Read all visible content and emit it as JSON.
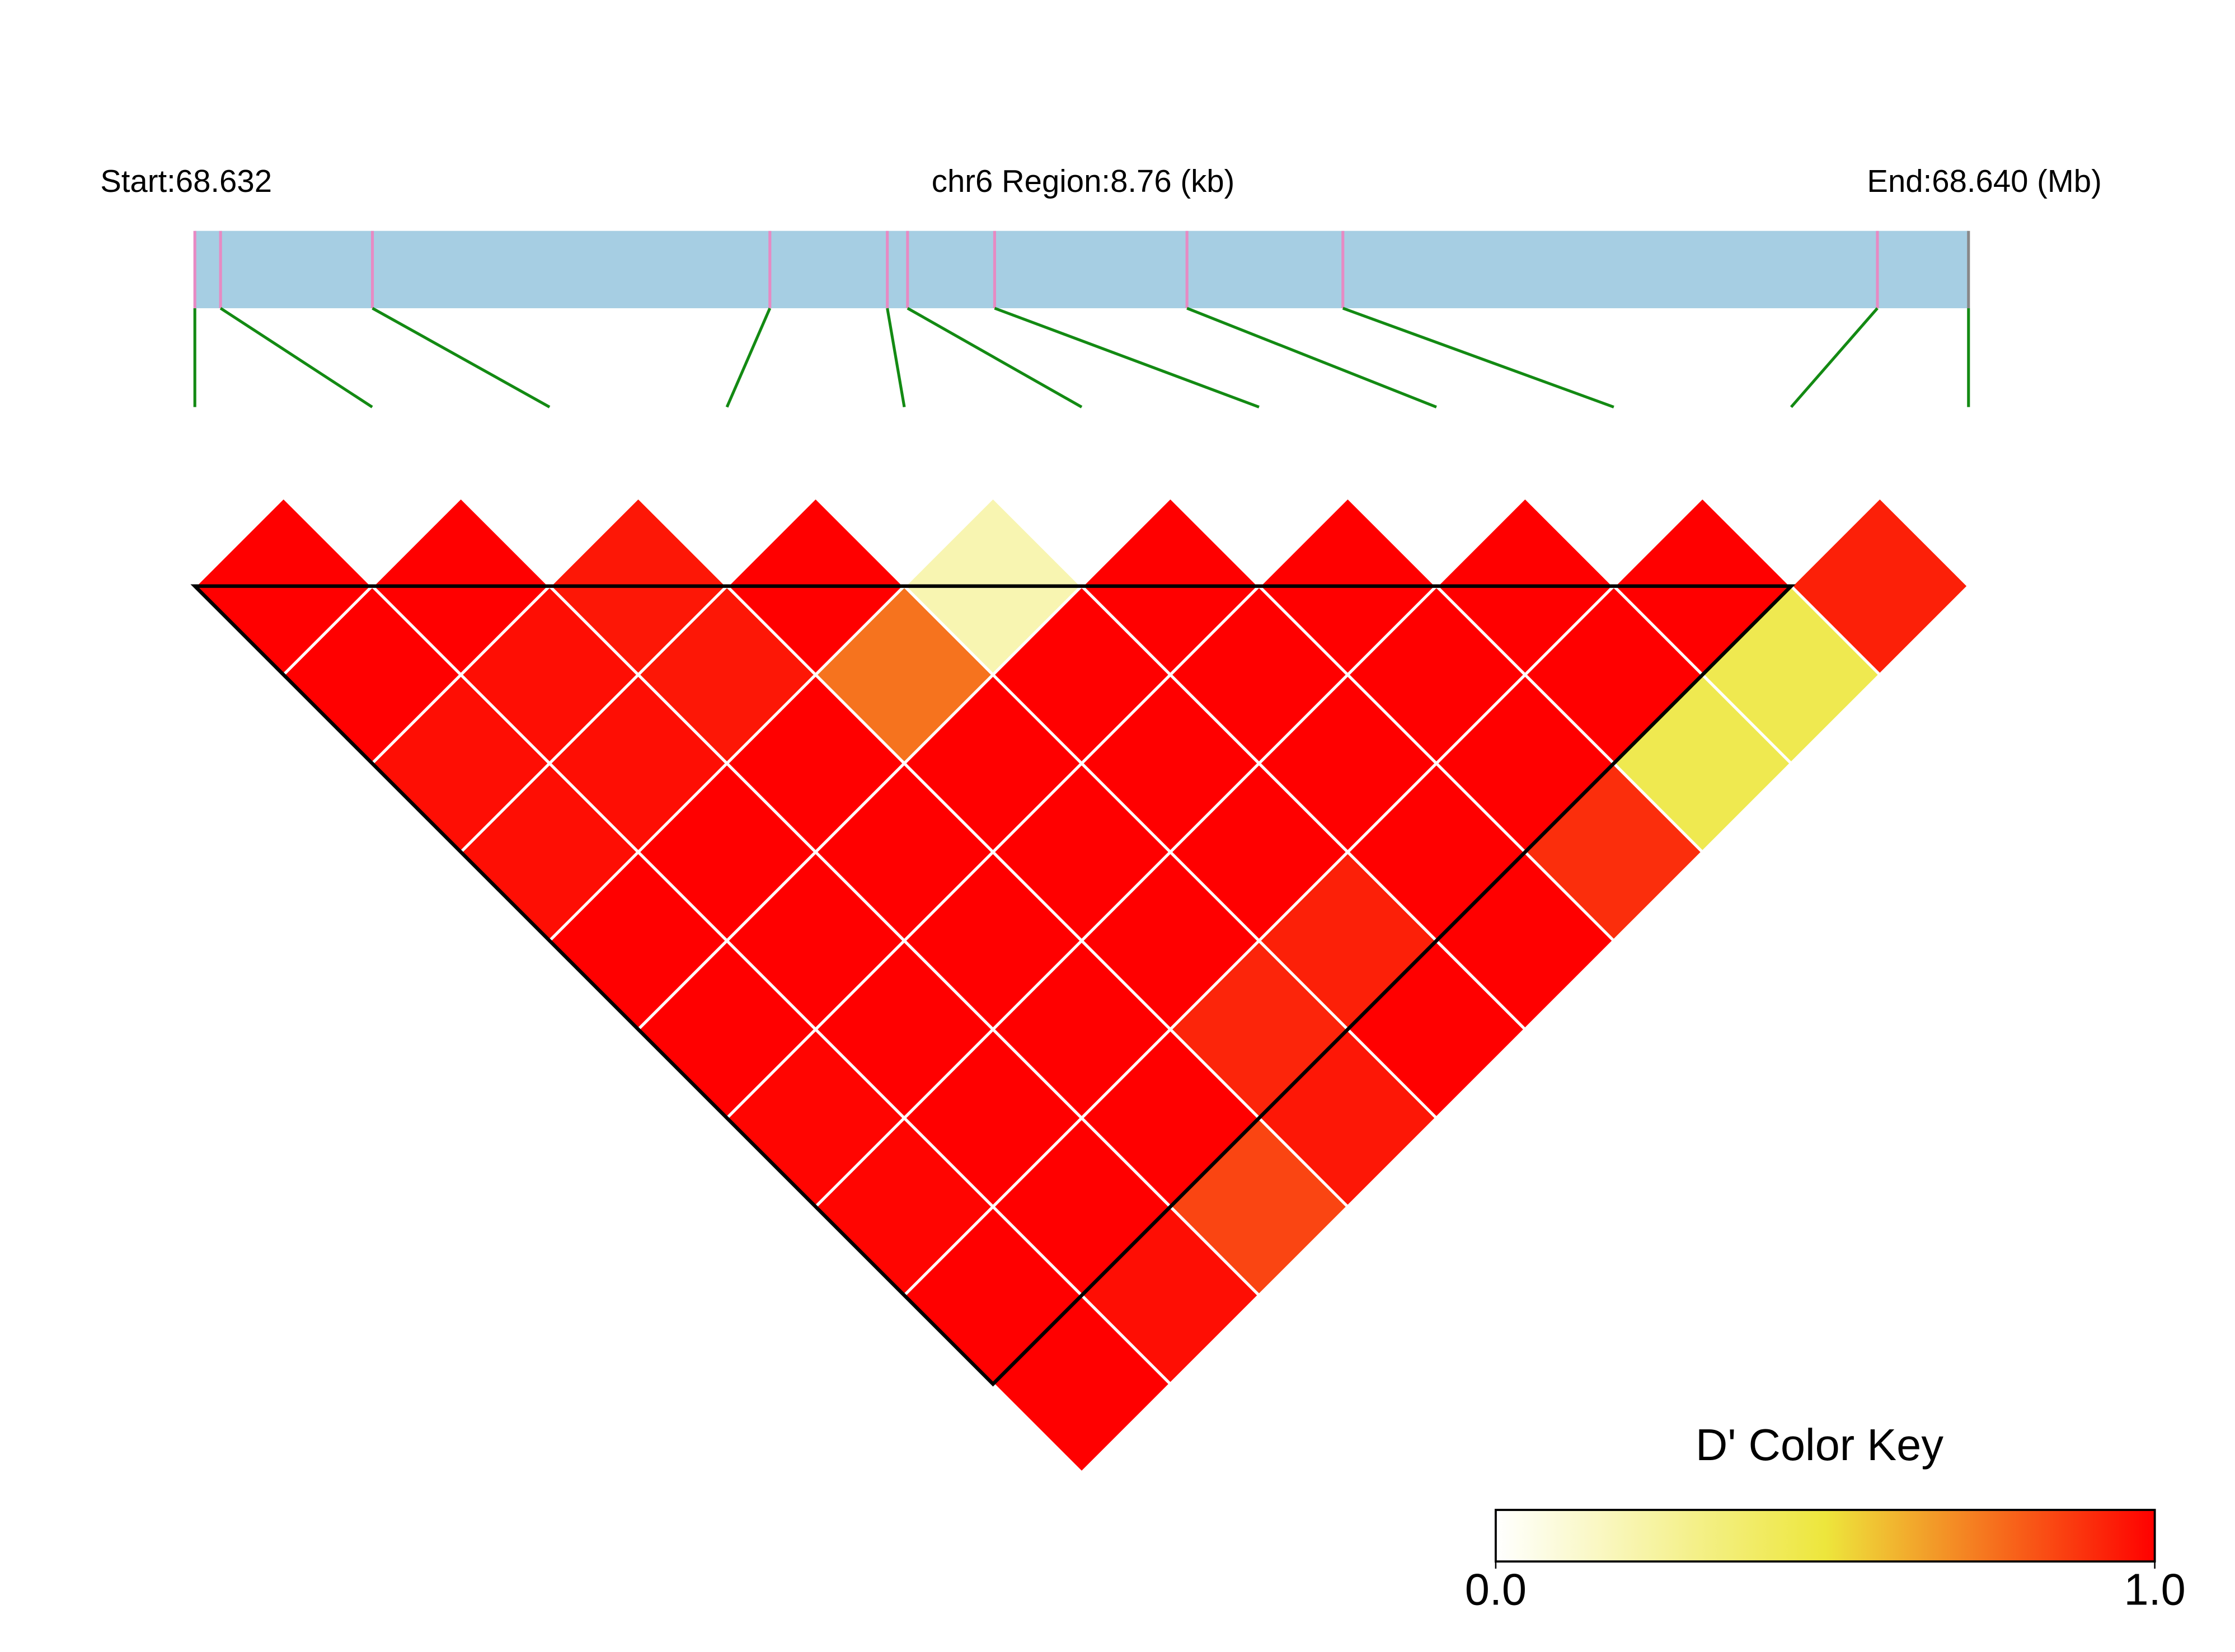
{
  "chart_data": {
    "type": "ld-heatmap",
    "start_label": "Start:68.632",
    "region_label": "chr6 Region:8.76 (kb)",
    "end_label": "End:68.640 (Mb)",
    "x": [
      0,
      0.127,
      0.877,
      2.84,
      3.42,
      3.52,
      3.95,
      4.9,
      5.67,
      8.31,
      8.76
    ],
    "xlim": [
      0,
      8.76
    ],
    "values": [
      [
        1.0,
        1.0,
        0.97,
        0.97,
        1.0,
        1.0,
        0.99,
        0.99,
        1.0,
        1.0
      ],
      [
        1.0,
        0.97,
        0.97,
        1.0,
        1.0,
        1.0,
        1.0,
        1.0,
        0.97
      ],
      [
        0.95,
        0.95,
        1.0,
        1.0,
        1.0,
        1.0,
        1.0,
        0.85
      ],
      [
        1.0,
        0.75,
        1.0,
        1.0,
        1.0,
        0.92,
        0.95
      ],
      [
        0.2,
        1.0,
        1.0,
        1.0,
        0.93,
        1.0
      ],
      [
        1.0,
        1.0,
        1.0,
        1.0,
        1.0
      ],
      [
        1.0,
        1.0,
        1.0,
        0.9
      ],
      [
        1.0,
        1.0,
        0.45
      ],
      [
        1.0,
        0.45
      ],
      [
        0.93
      ]
    ],
    "blocks": [
      {
        "start": 0,
        "end": 9
      }
    ],
    "colorscale": [
      "#ffffff",
      "#ede63c",
      "#ff0000"
    ],
    "bar_color": "#a6cee3",
    "snp_color": "#e78ac3",
    "link_color": "#138a13",
    "key_title": "D' Color Key",
    "key_ticks": [
      {
        "value": 0,
        "label": "0.0"
      },
      {
        "value": 1,
        "label": "1.0"
      }
    ]
  }
}
